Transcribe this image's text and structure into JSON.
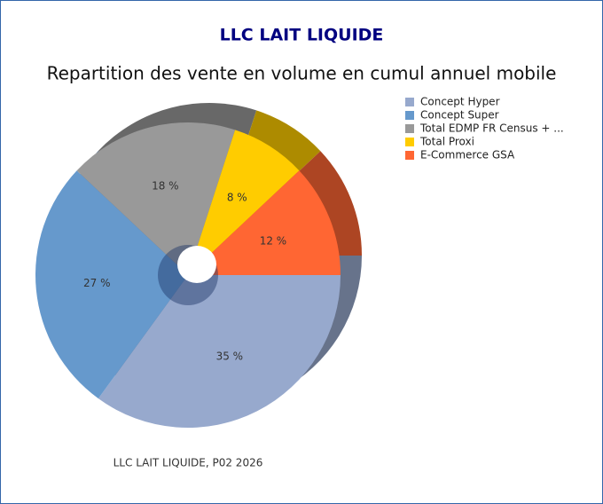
{
  "chart_data": {
    "type": "pie",
    "title": "LLC LAIT LIQUIDE",
    "subtitle": "Repartition des vente en volume en cumul annuel mobile",
    "categories": [
      "Concept Hyper",
      "Concept Super",
      "Total EDMP FR Census + ...",
      "Total Proxi",
      "E-Commerce GSA"
    ],
    "values": [
      35,
      27,
      18,
      8,
      12
    ],
    "value_labels": [
      "35 %",
      "27 %",
      "18 %",
      "8 %",
      "12 %"
    ],
    "colors": [
      "#97a9cd",
      "#6699cc",
      "#999999",
      "#ffcc00",
      "#ff6633"
    ],
    "legend": "top-right",
    "footnote": "LLC LAIT LIQUIDE, P02 2026"
  }
}
